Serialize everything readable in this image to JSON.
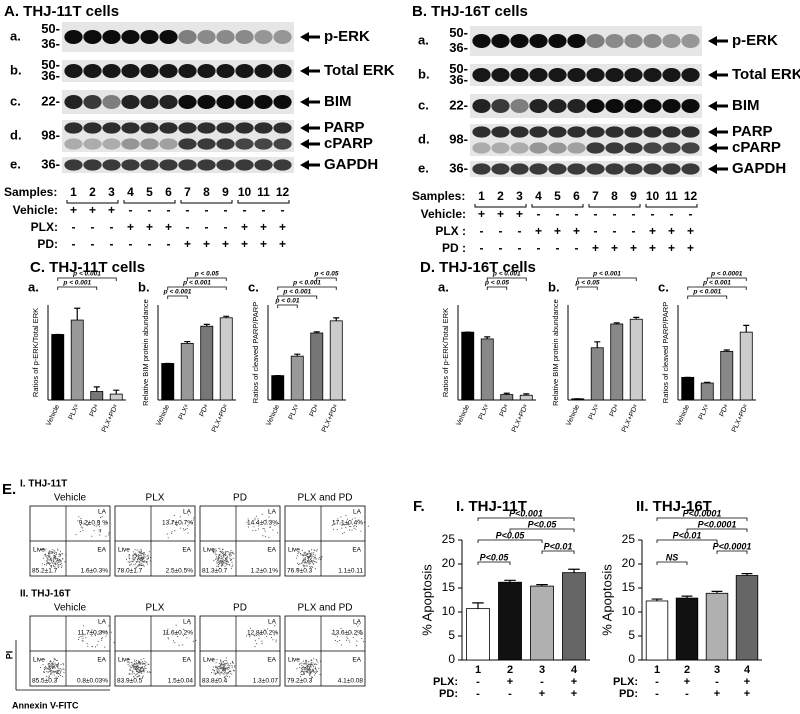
{
  "blots": [
    {
      "title": "A. THJ-11T cells",
      "rows": [
        {
          "letter": "a.",
          "markers": [
            "50-",
            "36-"
          ],
          "labels": [
            "p-ERK"
          ]
        },
        {
          "letter": "b.",
          "markers": [
            "50-",
            "36-"
          ],
          "labels": [
            "Total ERK"
          ]
        },
        {
          "letter": "c.",
          "markers": [
            "22-"
          ],
          "labels": [
            "BIM"
          ]
        },
        {
          "letter": "d.",
          "markers": [
            "98-"
          ],
          "labels": [
            "PARP",
            "cPARP"
          ]
        },
        {
          "letter": "e.",
          "markers": [
            "36-"
          ],
          "labels": [
            "GAPDH"
          ]
        }
      ],
      "samples_label": "Samples:",
      "samples": [
        "1",
        "2",
        "3",
        "4",
        "5",
        "6",
        "7",
        "8",
        "9",
        "10",
        "11",
        "12"
      ],
      "conditions": [
        {
          "label": "Vehicle:",
          "signs": [
            "+",
            "+",
            "+",
            "-",
            "-",
            "-",
            "-",
            "-",
            "-",
            "-",
            "-",
            "-"
          ]
        },
        {
          "label": "PLX:",
          "signs": [
            "-",
            "-",
            "-",
            "+",
            "+",
            "+",
            "-",
            "-",
            "-",
            "+",
            "+",
            "+"
          ]
        },
        {
          "label": "PD:",
          "signs": [
            "-",
            "-",
            "-",
            "-",
            "-",
            "-",
            "+",
            "+",
            "+",
            "+",
            "+",
            "+"
          ]
        }
      ]
    },
    {
      "title": "B. THJ-16T cells",
      "rows": [
        {
          "letter": "a.",
          "markers": [
            "50-",
            "36-"
          ],
          "labels": [
            "p-ERK"
          ]
        },
        {
          "letter": "b.",
          "markers": [
            "50-",
            "36-"
          ],
          "labels": [
            "Total ERK"
          ]
        },
        {
          "letter": "c.",
          "markers": [
            "22-"
          ],
          "labels": [
            "BIM"
          ]
        },
        {
          "letter": "d.",
          "markers": [
            "98-"
          ],
          "labels": [
            "PARP",
            "cPARP"
          ]
        },
        {
          "letter": "e.",
          "markers": [
            "36-"
          ],
          "labels": [
            "GAPDH"
          ]
        }
      ],
      "samples_label": "Samples:",
      "samples": [
        "1",
        "2",
        "3",
        "4",
        "5",
        "6",
        "7",
        "8",
        "9",
        "10",
        "11",
        "12"
      ],
      "conditions": [
        {
          "label": "Vehicle:",
          "signs": [
            "+",
            "+",
            "+",
            "-",
            "-",
            "-",
            "-",
            "-",
            "-",
            "-",
            "-",
            "-"
          ]
        },
        {
          "label": "PLX :",
          "signs": [
            "-",
            "-",
            "-",
            "+",
            "+",
            "+",
            "-",
            "-",
            "-",
            "+",
            "+",
            "+"
          ]
        },
        {
          "label": "PD :",
          "signs": [
            "-",
            "-",
            "-",
            "-",
            "-",
            "-",
            "+",
            "+",
            "+",
            "+",
            "+",
            "+"
          ]
        }
      ]
    }
  ],
  "panels": [
    "C. THJ-11T cells",
    "D. THJ-16T cells",
    "F."
  ],
  "chart_data": [
    {
      "type": "bar",
      "label": "a.",
      "ylabel": "Ratios of p-ERK/Total ERK",
      "categories": [
        "Vehicle",
        "PLXᵃ",
        "PDᵃ",
        "PLX+PDᵃ"
      ],
      "values": [
        1.0,
        1.22,
        0.13,
        0.09
      ],
      "errors": [
        0,
        0.18,
        0.07,
        0.06
      ],
      "colors": [
        "#000000",
        "#999999",
        "#777777",
        "#cccccc"
      ],
      "ylim": [
        0,
        1.45
      ],
      "yticks": [],
      "comparisons": [
        {
          "label": "p < 0.001",
          "between": [
            0,
            3
          ]
        },
        {
          "label": "p < 0.001",
          "between": [
            0,
            2
          ]
        }
      ]
    },
    {
      "type": "bar",
      "label": "b.",
      "ylabel": "Relative BIM protein abundance",
      "categories": [
        "Vehicle",
        "PLXᵃ",
        "PDᵃ",
        "PLX+PDᵃ"
      ],
      "values": [
        1.0,
        1.55,
        2.02,
        2.25
      ],
      "errors": [
        0,
        0.05,
        0.05,
        0.04
      ],
      "colors": [
        "#000000",
        "#999999",
        "#777777",
        "#cccccc"
      ],
      "ylim": [
        0,
        2.6
      ],
      "yticks": [],
      "comparisons": [
        {
          "label": "p < 0.05",
          "between": [
            1,
            3
          ]
        },
        {
          "label": "p < 0.001",
          "between": [
            0,
            3
          ]
        },
        {
          "label": "p < 0.001",
          "between": [
            0,
            1
          ]
        }
      ]
    },
    {
      "type": "bar",
      "label": "c.",
      "ylabel": "Ratios of cleaved PARP/PARP",
      "categories": [
        "Vehicle",
        "PLXᵃ",
        "PDᵃ",
        "PLX+PDᵃ"
      ],
      "values": [
        1.0,
        1.8,
        2.75,
        3.25
      ],
      "errors": [
        0,
        0.08,
        0.05,
        0.12
      ],
      "colors": [
        "#000000",
        "#999999",
        "#777777",
        "#cccccc"
      ],
      "ylim": [
        0,
        3.9
      ],
      "yticks": [],
      "comparisons": [
        {
          "label": "p < 0.05",
          "between": [
            2,
            3
          ]
        },
        {
          "label": "p < 0.001",
          "between": [
            0,
            3
          ]
        },
        {
          "label": "p < 0.001",
          "between": [
            0,
            2
          ]
        },
        {
          "label": "p < 0.01",
          "between": [
            0,
            1
          ]
        }
      ]
    },
    {
      "type": "bar",
      "label": "a.",
      "ylabel": "Ratios of p-ERK/Total ERK",
      "categories": [
        "Vehicle",
        "PLXᵃ",
        "PDᵃ",
        "PLX+PDᵃ"
      ],
      "values": [
        1.0,
        0.9,
        0.08,
        0.07
      ],
      "errors": [
        0,
        0.03,
        0.02,
        0.02
      ],
      "colors": [
        "#000000",
        "#888888",
        "#888888",
        "#cccccc"
      ],
      "ylim": [
        0,
        1.4
      ],
      "yticks": [],
      "comparisons": [
        {
          "label": "p < 0.001",
          "between": [
            1,
            3
          ]
        },
        {
          "label": "p < 0.05",
          "between": [
            1,
            2
          ]
        }
      ]
    },
    {
      "type": "bar",
      "label": "b.",
      "ylabel": "Relative BIM protein abundance",
      "categories": [
        "Vehicle",
        "PLXᵃ",
        "PDᵃ",
        "PLX+PDᵃ"
      ],
      "values": [
        0.05,
        2.2,
        3.2,
        3.4
      ],
      "errors": [
        0,
        0.25,
        0.05,
        0.08
      ],
      "colors": [
        "#000000",
        "#888888",
        "#888888",
        "#cccccc"
      ],
      "ylim": [
        0,
        4.0
      ],
      "yticks": [],
      "comparisons": [
        {
          "label": "p < 0.001",
          "between": [
            0,
            3
          ]
        },
        {
          "label": "p < 0.05",
          "between": [
            0,
            1
          ]
        }
      ]
    },
    {
      "type": "bar",
      "label": "c.",
      "ylabel": "Ratios of cleaved PARP/PARP",
      "categories": [
        "Vehicle",
        "PLXᵃ",
        "PDᵃ",
        "PLX+PDᵃ"
      ],
      "values": [
        1.0,
        0.75,
        2.15,
        3.0
      ],
      "errors": [
        0,
        0.03,
        0.06,
        0.3
      ],
      "colors": [
        "#000000",
        "#888888",
        "#888888",
        "#cccccc"
      ],
      "ylim": [
        0,
        4.2
      ],
      "yticks": [],
      "comparisons": [
        {
          "label": "p < 0.0001",
          "between": [
            1,
            3
          ]
        },
        {
          "label": "p < 0.001",
          "between": [
            0,
            3
          ]
        },
        {
          "label": "p < 0.001",
          "between": [
            0,
            2
          ]
        }
      ]
    },
    {
      "type": "bar",
      "title": "I. THJ-11T",
      "ylabel": "% Apoptosis",
      "categories": [
        "1",
        "2",
        "3",
        "4"
      ],
      "values": [
        10.7,
        16.2,
        15.4,
        18.2
      ],
      "errors": [
        1.2,
        0.4,
        0.3,
        0.7
      ],
      "colors": [
        "#ffffff",
        "#111111",
        "#b0b0b0",
        "#666666"
      ],
      "ylim": [
        0,
        25
      ],
      "yticks": [
        0,
        5,
        10,
        15,
        20,
        25
      ],
      "comparisons": [
        {
          "label": "P<0.001",
          "between": [
            0,
            3
          ]
        },
        {
          "label": "P<0.05",
          "between": [
            1,
            3
          ]
        },
        {
          "label": "P<0.05",
          "between": [
            0,
            2
          ]
        },
        {
          "label": "P<0.01",
          "between": [
            2,
            3
          ]
        },
        {
          "label": "P<0.05",
          "between": [
            0,
            1
          ]
        }
      ],
      "conditions": [
        {
          "label": "PLX:",
          "signs": [
            "-",
            "+",
            "-",
            "+"
          ]
        },
        {
          "label": "PD:",
          "signs": [
            "-",
            "-",
            "+",
            "+"
          ]
        }
      ]
    },
    {
      "type": "bar",
      "title": "II. THJ-16T",
      "ylabel": "% Apoptosis",
      "categories": [
        "1",
        "2",
        "3",
        "4"
      ],
      "values": [
        12.3,
        12.9,
        13.9,
        17.6
      ],
      "errors": [
        0.4,
        0.4,
        0.4,
        0.4
      ],
      "colors": [
        "#ffffff",
        "#111111",
        "#b0b0b0",
        "#666666"
      ],
      "ylim": [
        0,
        25
      ],
      "yticks": [
        0,
        5,
        10,
        15,
        20,
        25
      ],
      "comparisons": [
        {
          "label": "P<0.0001",
          "between": [
            0,
            3
          ]
        },
        {
          "label": "P<0.0001",
          "between": [
            1,
            3
          ]
        },
        {
          "label": "P<0.01",
          "between": [
            0,
            2
          ]
        },
        {
          "label": "P<0.0001",
          "between": [
            2,
            3
          ]
        },
        {
          "label": "NS",
          "between": [
            0,
            1
          ]
        }
      ],
      "conditions": [
        {
          "label": "PLX:",
          "signs": [
            "-",
            "+",
            "-",
            "+"
          ]
        },
        {
          "label": "PD:",
          "signs": [
            "-",
            "-",
            "+",
            "+"
          ]
        }
      ]
    }
  ],
  "flow": {
    "label": "E.",
    "quadrant_labels": [
      "LA",
      "Live",
      "EA"
    ],
    "x_label": "Annexin V-FITC",
    "y_label": "PI",
    "groups": [
      {
        "title": "I. THJ-11T",
        "columns": [
          "Vehicle",
          "PLX",
          "PD",
          "PLX and PD"
        ],
        "plots": [
          [
            "9.2±0.9 %",
            "85.2±1.7",
            "1.6±0.3%"
          ],
          [
            "13.7±0.7%",
            "78.0±1.7",
            "2.5±0.5%"
          ],
          [
            "14.4±0.3%",
            "81.3±0.7",
            "1.2±0.1%"
          ],
          [
            "17.1±0.4%",
            "76.9±0.3",
            "1.1±0.11"
          ]
        ]
      },
      {
        "title": "II. THJ-16T",
        "columns": [
          "Vehicle",
          "PLX",
          "PD",
          "PLX and PD"
        ],
        "plots": [
          [
            "11.7±0.3%",
            "85.5±0.3",
            "0.8±0.03%"
          ],
          [
            "11.6±0.2%",
            "83.9±0.5",
            "1.5±0.04"
          ],
          [
            "12.8±0.2%",
            "83.8±0.4",
            "1.3±0.07"
          ],
          [
            "13.6±0.2%",
            "79.2±0.3",
            "4.1±0.08"
          ]
        ]
      }
    ]
  }
}
